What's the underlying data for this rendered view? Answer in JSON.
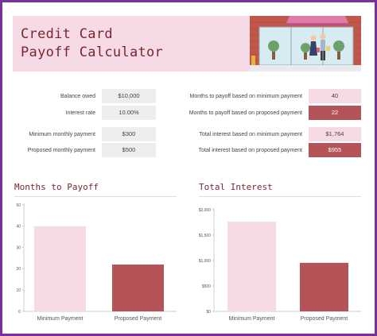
{
  "header": {
    "title_line1": "Credit Card",
    "title_line2": "Payoff Calculator"
  },
  "inputs": {
    "balance_label": "Balance owed",
    "balance_value": "$10,000",
    "rate_label": "Interest rate",
    "rate_value": "10.00%",
    "min_payment_label": "Minimum monthly payment",
    "min_payment_value": "$300",
    "proposed_payment_label": "Proposed monthly payment",
    "proposed_payment_value": "$500"
  },
  "results": {
    "months_min_label": "Months to payoff based on minimum payment",
    "months_min_value": "40",
    "months_prop_label": "Months to payoff based on proposed payment",
    "months_prop_value": "22",
    "interest_min_label": "Total interest based on minimum payment",
    "interest_min_value": "$1,764",
    "interest_prop_label": "Total interest based on proposed payment",
    "interest_prop_value": "$955"
  },
  "colors": {
    "accent_pink": "#f6dbe6",
    "accent_red": "#b55458",
    "title_color": "#7a2630",
    "frame": "#7a2fa0"
  },
  "chart_data": [
    {
      "type": "bar",
      "title": "Months to Payoff",
      "categories": [
        "Minimum Payment",
        "Proposed Payment"
      ],
      "values": [
        40,
        22
      ],
      "ylim": [
        0,
        50
      ],
      "yticks": [
        0,
        10,
        20,
        30,
        40,
        50
      ],
      "ytick_labels": [
        "0",
        "10",
        "20",
        "30",
        "40",
        "50"
      ],
      "bar_colors": [
        "#f6dbe6",
        "#b55458"
      ],
      "grid": false
    },
    {
      "type": "bar",
      "title": "Total Interest",
      "categories": [
        "Minimum Payment",
        "Proposed Payment"
      ],
      "values": [
        1764,
        955
      ],
      "ylim": [
        0,
        2000
      ],
      "yticks": [
        0,
        500,
        1000,
        1500,
        2000
      ],
      "ytick_labels": [
        "$0",
        "$500",
        "$1,000",
        "$1,500",
        "$2,000"
      ],
      "bar_colors": [
        "#f6dbe6",
        "#b55458"
      ],
      "grid": false
    }
  ]
}
